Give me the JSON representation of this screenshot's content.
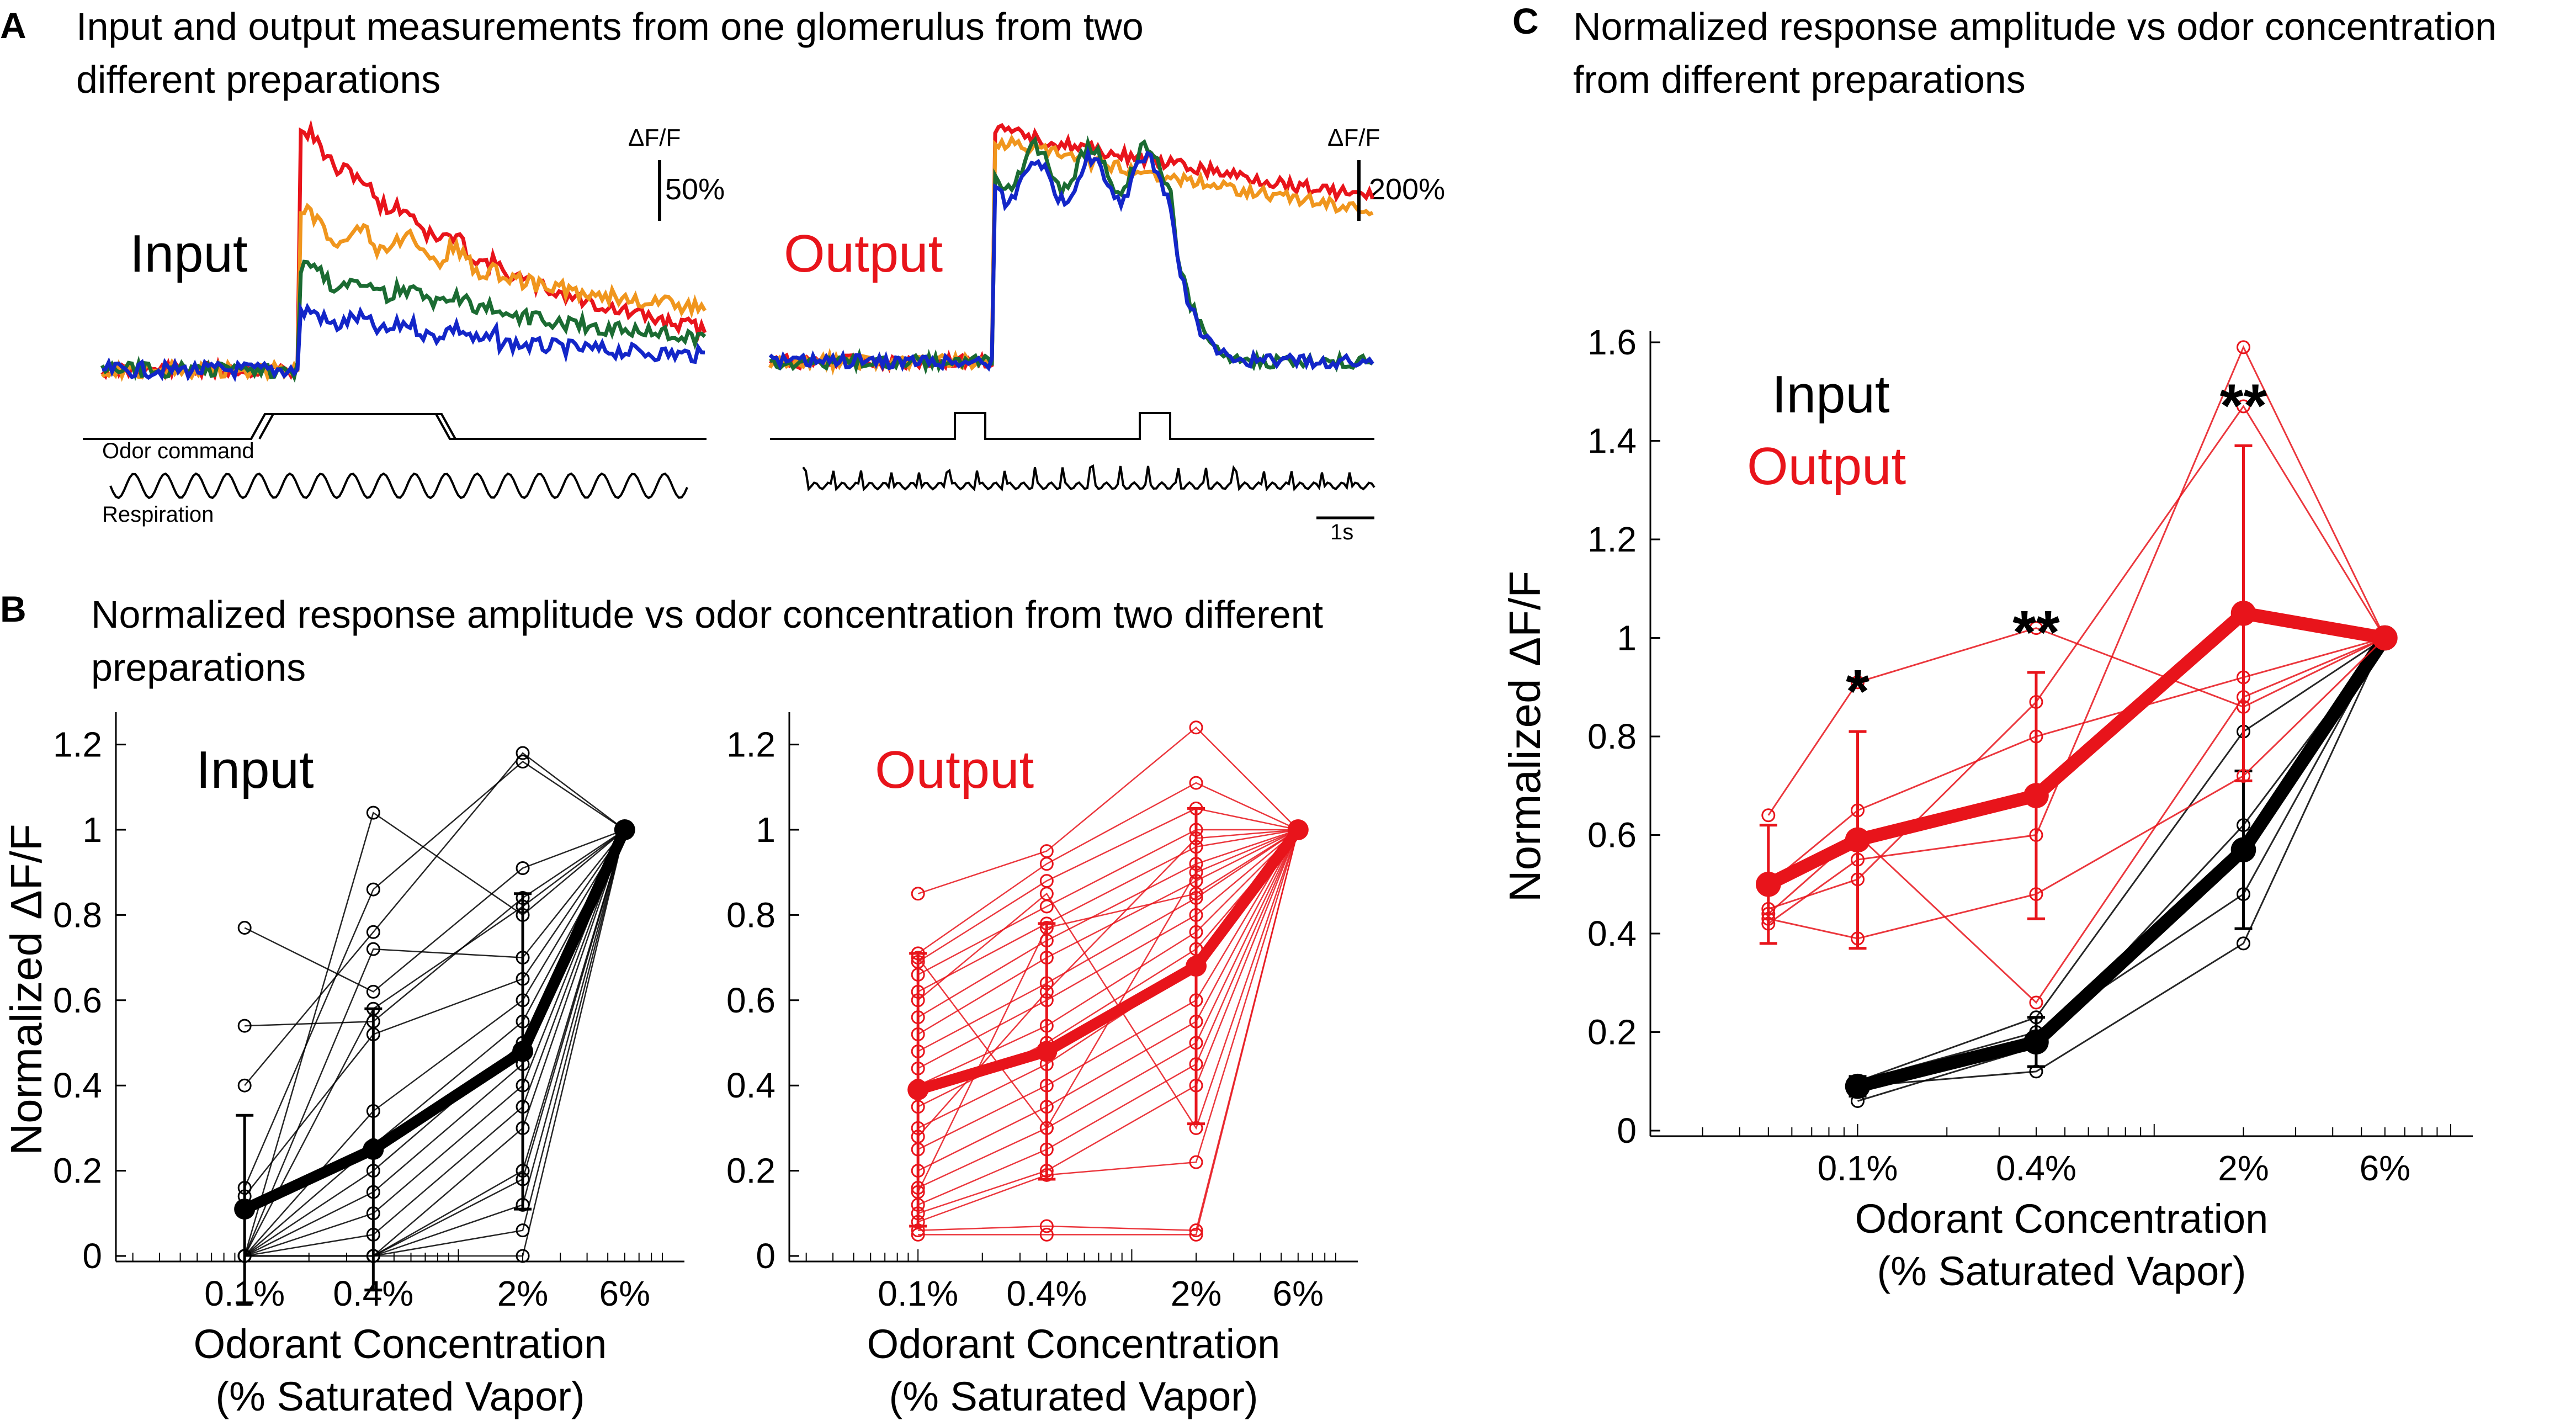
{
  "colors": {
    "red": "#e8141b",
    "orange": "#f0961e",
    "green": "#1b6b32",
    "blue": "#1326c8",
    "black": "#000000"
  },
  "panels": {
    "A": {
      "letter": "A",
      "title": "Input and output measurements from one glomerulus from two different preparations"
    },
    "B": {
      "letter": "B",
      "title": "Normalized response amplitude vs odor concentration from two different preparations"
    },
    "C": {
      "letter": "C",
      "title": "Normalized response amplitude vs odor concentration from different preparations"
    }
  },
  "traces": {
    "input_label": "Input",
    "output_label": "Output",
    "input_scale_unit": "ΔF/F",
    "input_scale_value": "50%",
    "output_scale_unit": "ΔF/F",
    "output_scale_value": "200%",
    "odor_command_label": "Odor command",
    "respiration_label": "Respiration",
    "time_scale_label": "1s"
  },
  "chart_data": [
    {
      "id": "B-input",
      "type": "line",
      "title": "Input",
      "xlabel": "Odorant Concentration",
      "xlabel2": "(% Saturated Vapor)",
      "ylabel": "Normalized ΔF/F",
      "x_scale": "log",
      "categories": [
        "0.1%",
        "0.4%",
        "2%",
        "6%"
      ],
      "x": [
        0.1,
        0.4,
        2,
        6
      ],
      "ylim": [
        0,
        1.25
      ],
      "yticks": [
        0,
        0.2,
        0.4,
        0.6,
        0.8,
        1,
        1.2
      ],
      "ytick_labels": [
        "0",
        "0.2",
        "0.4",
        "0.6",
        "0.8",
        "1",
        "1.2"
      ],
      "mean": {
        "values": [
          0.11,
          0.25,
          0.48,
          1.0
        ],
        "error": [
          0.22,
          0.33,
          0.37,
          0
        ]
      },
      "individual": [
        [
          0.77,
          0.62,
          0.91,
          1
        ],
        [
          0.54,
          0.55,
          0.84,
          1
        ],
        [
          0.4,
          0.76,
          1.18,
          1
        ],
        [
          0.16,
          0.86,
          1.16,
          1
        ],
        [
          0.0,
          1.04,
          0.8,
          1
        ],
        [
          0.0,
          0.72,
          0.7,
          1
        ],
        [
          0.14,
          0.52,
          0.65,
          1
        ],
        [
          0.0,
          0.34,
          0.6,
          1
        ],
        [
          0.0,
          0.26,
          0.55,
          1
        ],
        [
          0.0,
          0.2,
          0.5,
          1
        ],
        [
          0.0,
          0.15,
          0.45,
          1
        ],
        [
          0.0,
          0.1,
          0.4,
          1
        ],
        [
          0.0,
          0.05,
          0.35,
          1
        ],
        [
          0.0,
          0.0,
          0.3,
          1
        ],
        [
          0.0,
          0.0,
          0.2,
          1
        ],
        [
          0.0,
          0.0,
          0.18,
          1
        ],
        [
          0.0,
          0.0,
          0.12,
          1
        ],
        [
          0.0,
          0.0,
          0.06,
          1
        ],
        [
          0.0,
          0.0,
          0.0,
          1
        ],
        [
          0.0,
          0.58,
          0.82,
          1
        ]
      ]
    },
    {
      "id": "B-output",
      "type": "line",
      "title": "Output",
      "xlabel": "Odorant Concentration",
      "xlabel2": "(% Saturated Vapor)",
      "x_scale": "log",
      "categories": [
        "0.1%",
        "0.4%",
        "2%",
        "6%"
      ],
      "x": [
        0.1,
        0.4,
        2,
        6
      ],
      "ylim": [
        0,
        1.25
      ],
      "yticks": [
        0,
        0.2,
        0.4,
        0.6,
        0.8,
        1,
        1.2
      ],
      "ytick_labels": [
        "0",
        "0.2",
        "0.4",
        "0.6",
        "0.8",
        "1",
        "1.2"
      ],
      "mean": {
        "values": [
          0.39,
          0.48,
          0.68,
          1.0
        ],
        "error": [
          0.32,
          0.3,
          0.37,
          0
        ]
      },
      "individual": [
        [
          0.85,
          0.95,
          1.24,
          1
        ],
        [
          0.71,
          0.92,
          1.11,
          1
        ],
        [
          0.69,
          0.88,
          1.05,
          1
        ],
        [
          0.66,
          0.82,
          1.0,
          1
        ],
        [
          0.62,
          0.78,
          0.96,
          1
        ],
        [
          0.56,
          0.74,
          0.92,
          1
        ],
        [
          0.52,
          0.7,
          0.88,
          1
        ],
        [
          0.48,
          0.64,
          0.84,
          1
        ],
        [
          0.44,
          0.6,
          0.8,
          1
        ],
        [
          0.4,
          0.54,
          0.76,
          1
        ],
        [
          0.35,
          0.5,
          0.72,
          1
        ],
        [
          0.3,
          0.45,
          0.68,
          1
        ],
        [
          0.25,
          0.4,
          0.6,
          1
        ],
        [
          0.2,
          0.35,
          0.55,
          1
        ],
        [
          0.16,
          0.3,
          0.5,
          1
        ],
        [
          0.12,
          0.25,
          0.45,
          1
        ],
        [
          0.1,
          0.2,
          0.4,
          1
        ],
        [
          0.08,
          0.19,
          0.22,
          1
        ],
        [
          0.06,
          0.07,
          0.06,
          1
        ],
        [
          0.05,
          0.05,
          0.05,
          1
        ],
        [
          0.7,
          0.3,
          0.9,
          1
        ],
        [
          0.6,
          0.85,
          0.3,
          1
        ],
        [
          0.28,
          0.62,
          0.98,
          1
        ],
        [
          0.15,
          0.77,
          0.85,
          1
        ]
      ]
    },
    {
      "id": "C",
      "type": "line",
      "xlabel": "Odorant Concentration",
      "xlabel2": "(% Saturated Vapor)",
      "ylabel": "Normalized ΔF/F",
      "x_scale": "log",
      "categories": [
        "0.1%",
        "0.4%",
        "2%",
        "6%"
      ],
      "x": [
        0.1,
        0.4,
        2,
        6
      ],
      "xlim": [
        0.02,
        10
      ],
      "ylim": [
        0,
        1.6
      ],
      "yticks": [
        0,
        0.2,
        0.4,
        0.6,
        0.8,
        1,
        1.2,
        1.4,
        1.6
      ],
      "ytick_labels": [
        "0",
        "0.2",
        "0.4",
        "0.6",
        "0.8",
        "1",
        "1.2",
        "1.4",
        "1.6"
      ],
      "legend": [
        "Input",
        "Output"
      ],
      "series": [
        {
          "name": "Input",
          "x": [
            0.1,
            0.4,
            2,
            6
          ],
          "mean": [
            0.09,
            0.18,
            0.57,
            1.0
          ],
          "error": [
            0.02,
            0.05,
            0.16,
            0
          ],
          "individual": [
            [
              0.1,
              0.23,
              0.81,
              1
            ],
            [
              0.09,
              0.12,
              0.38,
              1
            ],
            [
              0.06,
              0.17,
              0.62,
              1
            ],
            [
              0.1,
              0.2,
              0.48,
              1
            ]
          ]
        },
        {
          "name": "Output",
          "x": [
            0.05,
            0.1,
            0.4,
            2,
            6
          ],
          "mean": [
            0.5,
            0.59,
            0.68,
            1.05,
            1.0
          ],
          "error": [
            0.12,
            0.22,
            0.25,
            0.34,
            0
          ],
          "individual": [
            [
              0.64,
              0.91,
              1.02,
              0.86,
              1
            ],
            [
              0.42,
              0.55,
              0.6,
              1.59,
              1
            ],
            [
              0.45,
              0.51,
              0.87,
              1.47,
              1
            ],
            [
              0.43,
              0.39,
              0.48,
              0.72,
              1
            ],
            [
              0.5,
              0.65,
              0.8,
              0.92,
              1
            ],
            [
              0.44,
              0.6,
              0.26,
              0.88,
              1
            ]
          ]
        }
      ],
      "annotations": [
        {
          "text": "*",
          "x": 0.1
        },
        {
          "text": "**",
          "x": 0.4
        },
        {
          "text": "**",
          "x": 2
        }
      ]
    }
  ]
}
